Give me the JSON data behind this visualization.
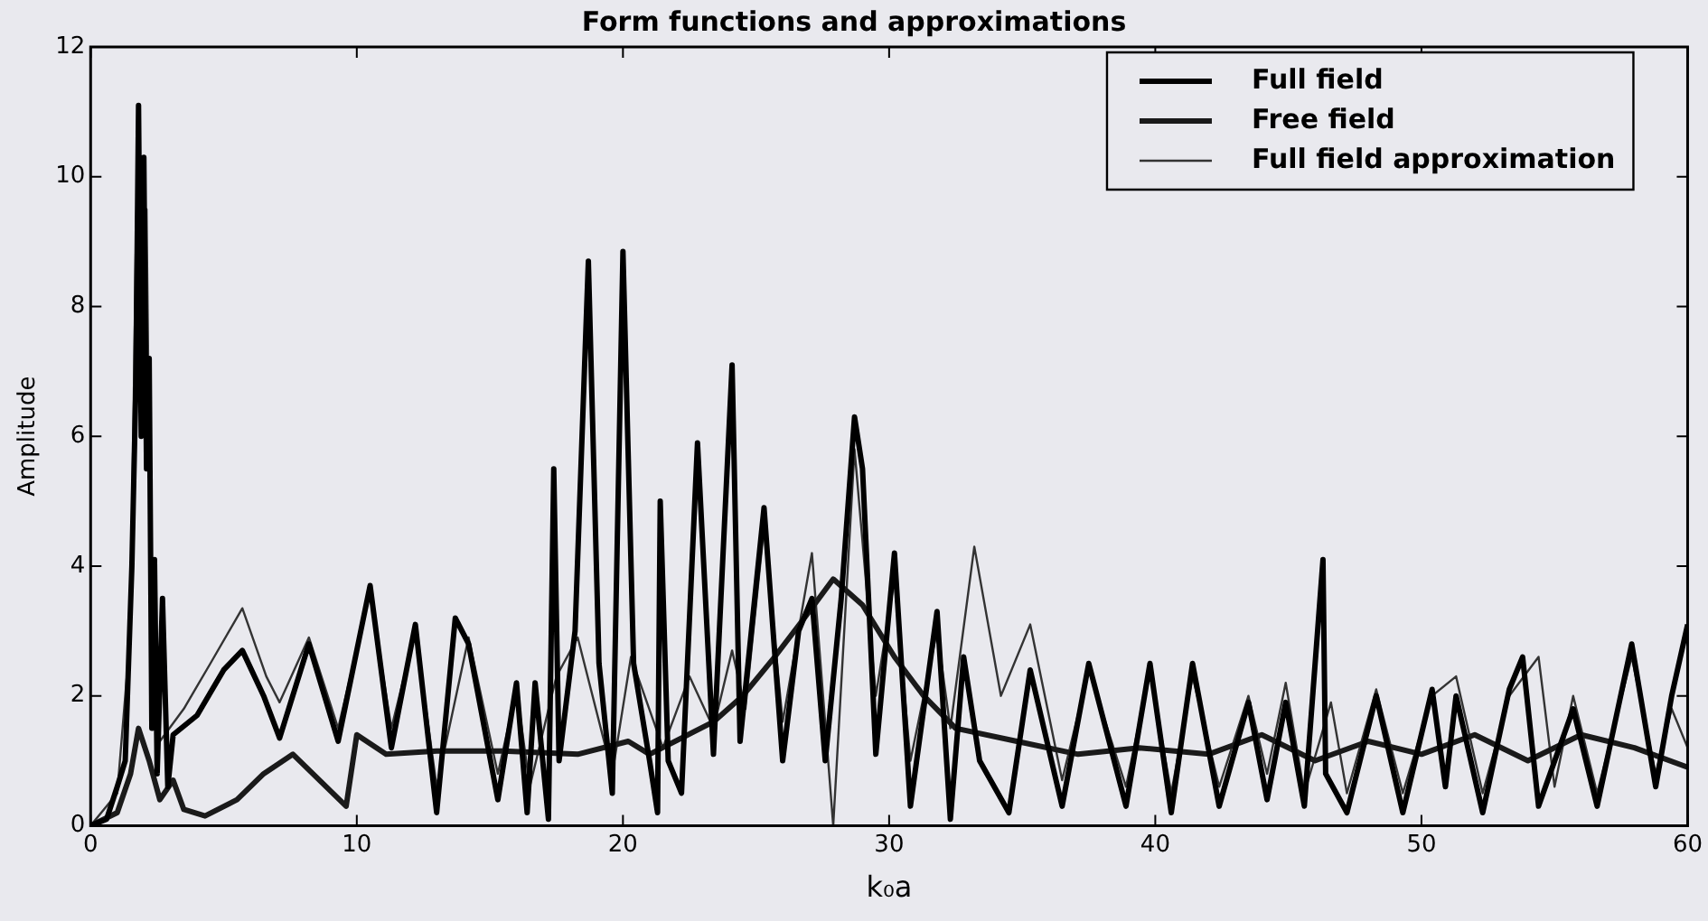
{
  "chart_data": {
    "type": "line",
    "title": "Form functions and approximations",
    "xlabel": "k₀a",
    "ylabel": "Amplitude",
    "xlim": [
      0,
      60
    ],
    "xticks": [
      0,
      10,
      20,
      30,
      40,
      50,
      60
    ],
    "ylim": [
      0,
      12
    ],
    "yticks": [
      0,
      2,
      4,
      6,
      8,
      10,
      12
    ],
    "grid": false,
    "legend": "top right",
    "marker": "none",
    "line_style": "solid",
    "series": [
      {
        "name": "Full field",
        "color": "#000000",
        "x": [
          0,
          0.6,
          1.0,
          1.3,
          1.55,
          1.7,
          1.8,
          1.9,
          2.0,
          2.1,
          2.2,
          2.3,
          2.4,
          2.5,
          2.7,
          2.9,
          3.1,
          4.0,
          5.0,
          5.7,
          6.5,
          7.1,
          8.2,
          9.3,
          10.5,
          11.3,
          12.2,
          13.0,
          13.7,
          14.2,
          15.3,
          16.0,
          16.4,
          16.7,
          17.2,
          17.4,
          17.6,
          18.2,
          18.7,
          19.1,
          19.6,
          20.0,
          20.4,
          21.0,
          21.3,
          21.4,
          21.7,
          22.2,
          22.8,
          23.4,
          24.1,
          24.4,
          25.3,
          26.0,
          26.6,
          27.1,
          27.6,
          28.2,
          28.7,
          29.0,
          29.5,
          30.2,
          30.8,
          31.8,
          32.3,
          32.8,
          33.4,
          34.5,
          35.3,
          36.5,
          37.5,
          38.9,
          39.8,
          40.6,
          41.4,
          42.4,
          43.5,
          44.2,
          44.9,
          45.6,
          46.3,
          46.4,
          47.2,
          48.3,
          49.3,
          50.4,
          50.9,
          51.3,
          52.3,
          53.3,
          53.8,
          54.4,
          55.7,
          56.6,
          57.9,
          58.8,
          59.4,
          60
        ],
        "values": [
          0,
          0.1,
          0.6,
          1.0,
          4,
          6.8,
          11.1,
          6,
          10.3,
          5.5,
          7.2,
          1.5,
          4.1,
          0.8,
          3.5,
          0.6,
          1.4,
          1.7,
          2.4,
          2.7,
          2.0,
          1.35,
          2.8,
          1.3,
          3.7,
          1.2,
          3.1,
          0.2,
          3.2,
          2.8,
          0.4,
          2.2,
          0.2,
          2.2,
          0.1,
          5.5,
          1.0,
          3.0,
          8.7,
          2.5,
          0.5,
          8.85,
          2.5,
          1.0,
          0.2,
          5.0,
          1.0,
          0.5,
          5.9,
          1.1,
          7.1,
          1.3,
          4.9,
          1.0,
          3.0,
          3.5,
          1.0,
          3.5,
          6.3,
          5.5,
          1.1,
          4.2,
          0.3,
          3.3,
          0.1,
          2.6,
          1.0,
          0.2,
          2.4,
          0.3,
          2.5,
          0.3,
          2.5,
          0.2,
          2.5,
          0.3,
          1.9,
          0.4,
          1.9,
          0.3,
          4.1,
          0.8,
          0.2,
          2.0,
          0.2,
          2.1,
          0.6,
          2.0,
          0.2,
          2.1,
          2.6,
          0.3,
          1.8,
          0.3,
          2.8,
          0.6,
          2.0,
          3.1
        ]
      },
      {
        "name": "Free field",
        "color": "#1a1a1a",
        "x": [
          0,
          1.0,
          1.5,
          1.8,
          2.2,
          2.6,
          3.1,
          3.5,
          4.3,
          5.5,
          6.5,
          7.6,
          8.6,
          9.6,
          10.0,
          11.1,
          13.0,
          15.5,
          18.3,
          20.2,
          21.0,
          23.4,
          24.5,
          25.7,
          27.0,
          27.9,
          29.0,
          30.2,
          31.3,
          32.5,
          34.8,
          37.1,
          39.4,
          42,
          44,
          46,
          48,
          50,
          52,
          54,
          56,
          58,
          60
        ],
        "values": [
          0,
          0.2,
          0.8,
          1.5,
          1.0,
          0.4,
          0.7,
          0.25,
          0.15,
          0.4,
          0.8,
          1.1,
          0.7,
          0.3,
          1.4,
          1.1,
          1.15,
          1.15,
          1.1,
          1.3,
          1.1,
          1.6,
          2.0,
          2.6,
          3.3,
          3.8,
          3.4,
          2.6,
          2.0,
          1.5,
          1.3,
          1.1,
          1.2,
          1.1,
          1.4,
          1.0,
          1.3,
          1.1,
          1.4,
          1.0,
          1.4,
          1.2,
          0.9
        ]
      },
      {
        "name": "Full field approximation",
        "color": "#333333",
        "x": [
          0,
          1.0,
          1.5,
          1.7,
          1.8,
          1.95,
          2.1,
          2.3,
          2.6,
          3.5,
          4.5,
          5.7,
          6.6,
          7.1,
          8.2,
          9.3,
          10.5,
          11.3,
          12.2,
          13.0,
          14.2,
          15.3,
          16.0,
          16.5,
          17.5,
          18.3,
          19.6,
          20.3,
          21.5,
          22.5,
          23.4,
          24.1,
          24.6,
          25.3,
          26.0,
          27.1,
          27.9,
          28.7,
          29.5,
          30.2,
          30.8,
          31.8,
          32.3,
          33.2,
          34.2,
          35.3,
          36.5,
          37.5,
          38.9,
          39.8,
          40.6,
          41.4,
          42.4,
          43.5,
          44.2,
          44.9,
          45.6,
          46.6,
          47.2,
          48.3,
          49.3,
          50.4,
          51.3,
          52.3,
          53.3,
          54.4,
          55.0,
          55.7,
          56.6,
          57.9,
          58.8,
          59.4,
          60
        ],
        "values": [
          0,
          0.5,
          3,
          9,
          10.8,
          7,
          9.5,
          2,
          1.3,
          1.8,
          2.5,
          3.35,
          2.3,
          1.9,
          2.9,
          1.5,
          3.6,
          1.5,
          3.0,
          0.6,
          2.9,
          0.8,
          2.1,
          0.6,
          2.3,
          2.9,
          0.8,
          2.6,
          1.2,
          2.3,
          1.5,
          2.7,
          1.8,
          4.6,
          1.6,
          4.2,
          0.0,
          5.8,
          2.0,
          3.8,
          1.0,
          3.0,
          1.5,
          4.3,
          2.0,
          3.1,
          0.7,
          2.4,
          0.6,
          2.4,
          0.5,
          2.3,
          0.6,
          2.0,
          0.8,
          2.2,
          0.5,
          1.9,
          0.5,
          2.1,
          0.5,
          2.0,
          2.3,
          0.5,
          2.0,
          2.6,
          0.6,
          2.0,
          0.5,
          2.6,
          0.8,
          1.8,
          1.2
        ]
      }
    ]
  }
}
